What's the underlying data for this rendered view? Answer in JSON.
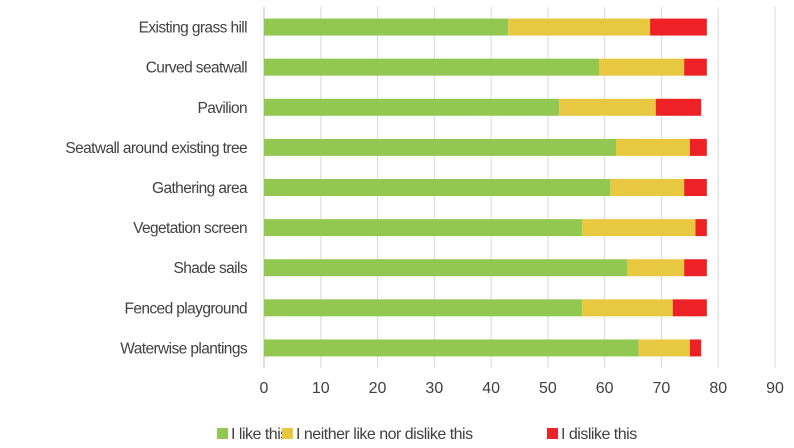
{
  "chart_data": {
    "type": "bar",
    "orientation": "horizontal",
    "stacked": true,
    "categories": [
      "Existing grass hill",
      "Curved seatwall",
      "Pavilion",
      "Seatwall around existing tree",
      "Gathering area",
      "Vegetation screen",
      "Shade sails",
      "Fenced playground",
      "Waterwise plantings"
    ],
    "series": [
      {
        "name": "I like this",
        "color": "#92c851",
        "values": [
          43,
          59,
          52,
          62,
          61,
          56,
          64,
          56,
          66
        ]
      },
      {
        "name": "I neither like nor dislike this",
        "color": "#e9c841",
        "values": [
          25,
          15,
          17,
          13,
          13,
          20,
          10,
          16,
          9
        ]
      },
      {
        "name": "I dislike this",
        "color": "#ec2227",
        "values": [
          10,
          4,
          8,
          3,
          4,
          2,
          4,
          6,
          2
        ]
      }
    ],
    "xlim": [
      0,
      90
    ],
    "xticks": [
      "0",
      "10",
      "20",
      "30",
      "40",
      "50",
      "60",
      "70",
      "80",
      "90"
    ],
    "grid": true,
    "legend_position": "bottom"
  }
}
